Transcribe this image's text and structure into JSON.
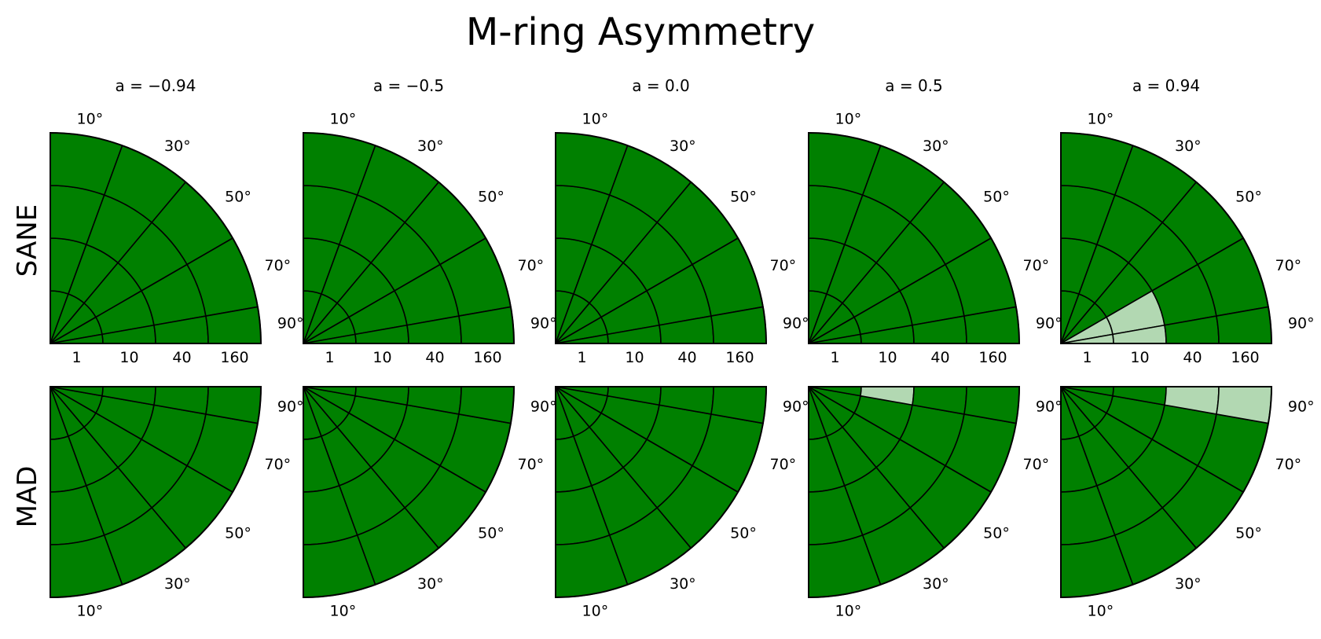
{
  "figure": {
    "title": "M-ring Asymmetry",
    "row_labels": [
      "SANE",
      "MAD"
    ],
    "column_titles": [
      "a = −0.94",
      "a = −0.5",
      "a = 0.0",
      "a = 0.5",
      "a = 0.94"
    ]
  },
  "colors": {
    "pass": "#008000",
    "fail": "#b2d8b2",
    "grid": "#000000"
  },
  "chart_data": {
    "type": "heatmap",
    "layout": "quarter-polar grid, 2 rows x 5 columns",
    "radial_axis": {
      "labels": [
        "1",
        "10",
        "40",
        "160"
      ]
    },
    "angular_axis": {
      "labels": [
        "10°",
        "30°",
        "50°",
        "70°",
        "90°"
      ]
    },
    "value_legend": [
      "pass",
      "fail"
    ],
    "panels": [
      {
        "model": "SANE",
        "spin": "a = −0.94",
        "fail_cells": []
      },
      {
        "model": "SANE",
        "spin": "a = −0.5",
        "fail_cells": []
      },
      {
        "model": "SANE",
        "spin": "a = 0.0",
        "fail_cells": []
      },
      {
        "model": "SANE",
        "spin": "a = 0.5",
        "fail_cells": []
      },
      {
        "model": "SANE",
        "spin": "a = 0.94",
        "fail_cells": [
          {
            "radial": "1",
            "angle": "70°"
          },
          {
            "radial": "10",
            "angle": "70°"
          },
          {
            "radial": "1",
            "angle": "90°"
          },
          {
            "radial": "10",
            "angle": "90°"
          }
        ]
      },
      {
        "model": "MAD",
        "spin": "a = −0.94",
        "fail_cells": []
      },
      {
        "model": "MAD",
        "spin": "a = −0.5",
        "fail_cells": []
      },
      {
        "model": "MAD",
        "spin": "a = 0.0",
        "fail_cells": []
      },
      {
        "model": "MAD",
        "spin": "a = 0.5",
        "fail_cells": [
          {
            "radial": "10",
            "angle": "90°"
          }
        ]
      },
      {
        "model": "MAD",
        "spin": "a = 0.94",
        "fail_cells": [
          {
            "radial": "40",
            "angle": "90°"
          },
          {
            "radial": "160",
            "angle": "90°"
          }
        ]
      }
    ]
  }
}
